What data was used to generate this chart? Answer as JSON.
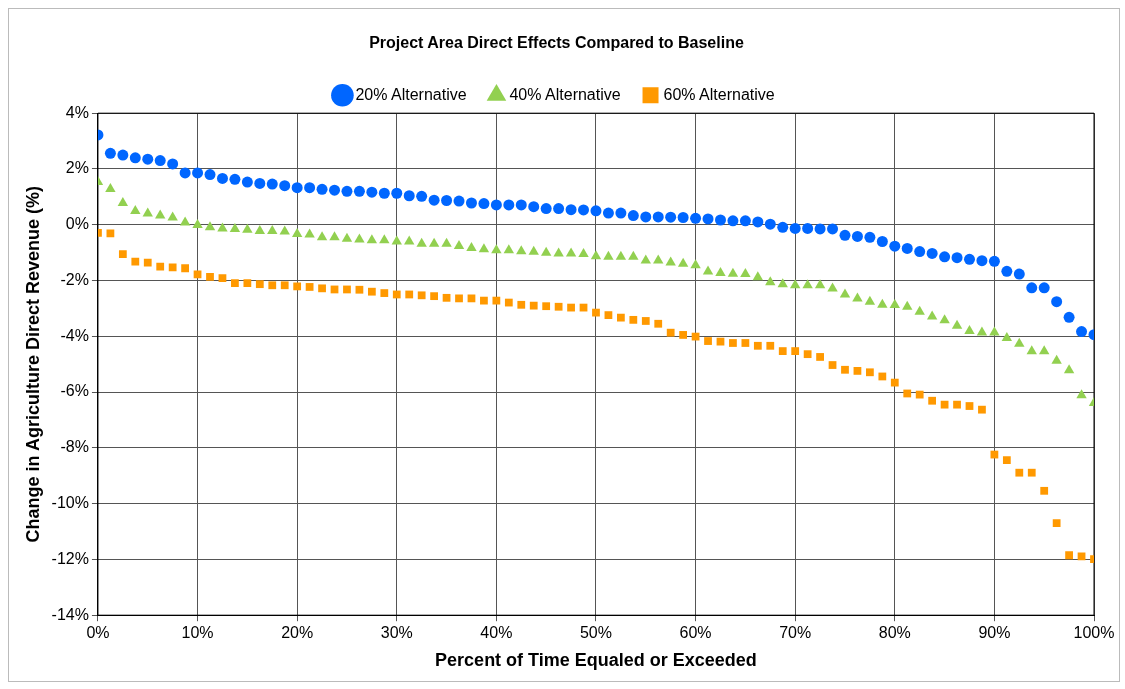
{
  "chart_data": {
    "type": "scatter",
    "title": "Project Area Direct Effects Compared to Baseline",
    "xlabel": "Percent of Time Equaled or Exceeded",
    "ylabel": "Change in Agriculture Direct Revenue (%)",
    "x": [
      0,
      1.25,
      2.5,
      3.75,
      5,
      6.25,
      7.5,
      8.75,
      10,
      11.25,
      12.5,
      13.75,
      15,
      16.25,
      17.5,
      18.75,
      20,
      21.25,
      22.5,
      23.75,
      25,
      26.25,
      27.5,
      28.75,
      30,
      31.25,
      32.5,
      33.75,
      35,
      36.25,
      37.5,
      38.75,
      40,
      41.25,
      42.5,
      43.75,
      45,
      46.25,
      47.5,
      48.75,
      50,
      51.25,
      52.5,
      53.75,
      55,
      56.25,
      57.5,
      58.75,
      60,
      61.25,
      62.5,
      63.75,
      65,
      66.25,
      67.5,
      68.75,
      70,
      71.25,
      72.5,
      73.75,
      75,
      76.25,
      77.5,
      78.75,
      80,
      81.25,
      82.5,
      83.75,
      85,
      86.25,
      87.5,
      88.75,
      90,
      91.25,
      92.5,
      93.75,
      95,
      96.25,
      97.5,
      98.75,
      100
    ],
    "series": [
      {
        "name": "20% Alternative",
        "color": "#0066ff",
        "marker": "circle",
        "values": [
          3.22,
          2.56,
          2.5,
          2.4,
          2.35,
          2.3,
          2.18,
          1.86,
          1.86,
          1.8,
          1.66,
          1.63,
          1.53,
          1.48,
          1.46,
          1.4,
          1.33,
          1.33,
          1.27,
          1.24,
          1.2,
          1.2,
          1.17,
          1.13,
          1.13,
          1.04,
          1.02,
          0.88,
          0.87,
          0.85,
          0.78,
          0.76,
          0.71,
          0.71,
          0.71,
          0.65,
          0.58,
          0.58,
          0.54,
          0.53,
          0.5,
          0.42,
          0.42,
          0.33,
          0.28,
          0.28,
          0.27,
          0.26,
          0.23,
          0.21,
          0.17,
          0.14,
          0.14,
          0.1,
          0.02,
          -0.09,
          -0.13,
          -0.13,
          -0.15,
          -0.15,
          -0.38,
          -0.42,
          -0.45,
          -0.6,
          -0.77,
          -0.85,
          -0.96,
          -1.03,
          -1.15,
          -1.18,
          -1.24,
          -1.29,
          -1.31,
          -1.67,
          -1.77,
          -2.26,
          -2.26,
          -2.76,
          -3.32,
          -3.83,
          -3.94
        ]
      },
      {
        "name": "40% Alternative",
        "color": "#92d050",
        "marker": "triangle",
        "values": [
          1.53,
          1.28,
          0.78,
          0.49,
          0.4,
          0.33,
          0.26,
          0.08,
          -0.01,
          -0.09,
          -0.13,
          -0.15,
          -0.18,
          -0.22,
          -0.22,
          -0.24,
          -0.33,
          -0.35,
          -0.45,
          -0.45,
          -0.5,
          -0.53,
          -0.56,
          -0.56,
          -0.6,
          -0.6,
          -0.68,
          -0.68,
          -0.68,
          -0.76,
          -0.83,
          -0.88,
          -0.91,
          -0.91,
          -0.95,
          -0.97,
          -1.0,
          -1.03,
          -1.03,
          -1.05,
          -1.13,
          -1.15,
          -1.15,
          -1.15,
          -1.28,
          -1.28,
          -1.35,
          -1.4,
          -1.45,
          -1.68,
          -1.73,
          -1.76,
          -1.77,
          -1.88,
          -2.06,
          -2.13,
          -2.17,
          -2.17,
          -2.17,
          -2.29,
          -2.5,
          -2.64,
          -2.76,
          -2.87,
          -2.88,
          -2.94,
          -3.12,
          -3.29,
          -3.42,
          -3.62,
          -3.81,
          -3.86,
          -3.86,
          -4.06,
          -4.27,
          -4.54,
          -4.54,
          -4.88,
          -5.22,
          -6.11,
          -6.39
        ]
      },
      {
        "name": "60% Alternative",
        "color": "#ff9900",
        "marker": "square",
        "values": [
          -0.29,
          -0.31,
          -1.05,
          -1.32,
          -1.36,
          -1.5,
          -1.53,
          -1.56,
          -1.78,
          -1.87,
          -1.91,
          -2.09,
          -2.09,
          -2.13,
          -2.17,
          -2.17,
          -2.21,
          -2.23,
          -2.28,
          -2.32,
          -2.32,
          -2.33,
          -2.4,
          -2.45,
          -2.5,
          -2.5,
          -2.53,
          -2.56,
          -2.62,
          -2.64,
          -2.64,
          -2.72,
          -2.72,
          -2.79,
          -2.87,
          -2.9,
          -2.92,
          -2.94,
          -2.97,
          -2.97,
          -3.15,
          -3.24,
          -3.33,
          -3.41,
          -3.45,
          -3.55,
          -3.87,
          -3.95,
          -4.01,
          -4.17,
          -4.19,
          -4.24,
          -4.24,
          -4.34,
          -4.34,
          -4.53,
          -4.53,
          -4.64,
          -4.74,
          -5.03,
          -5.2,
          -5.24,
          -5.29,
          -5.44,
          -5.66,
          -6.05,
          -6.09,
          -6.31,
          -6.45,
          -6.45,
          -6.5,
          -6.63,
          -8.24,
          -8.44,
          -8.89,
          -8.89,
          -9.54,
          -10.7,
          -11.85,
          -11.89,
          -11.99
        ]
      }
    ],
    "xlim": [
      0,
      100
    ],
    "xticks": [
      {
        "value": 0,
        "label": "0%"
      },
      {
        "value": 10,
        "label": "10%"
      },
      {
        "value": 20,
        "label": "20%"
      },
      {
        "value": 30,
        "label": "30%"
      },
      {
        "value": 40,
        "label": "40%"
      },
      {
        "value": 50,
        "label": "50%"
      },
      {
        "value": 60,
        "label": "60%"
      },
      {
        "value": 70,
        "label": "70%"
      },
      {
        "value": 80,
        "label": "80%"
      },
      {
        "value": 90,
        "label": "90%"
      },
      {
        "value": 100,
        "label": "100%"
      }
    ],
    "ylim": [
      -14,
      4
    ],
    "yticks": [
      {
        "value": -14,
        "label": "-14%"
      },
      {
        "value": -12,
        "label": "-12%"
      },
      {
        "value": -10,
        "label": "-10%"
      },
      {
        "value": -8,
        "label": "-8%"
      },
      {
        "value": -6,
        "label": "-6%"
      },
      {
        "value": -4,
        "label": "-4%"
      },
      {
        "value": -2,
        "label": "-2%"
      },
      {
        "value": 0,
        "label": "0%"
      },
      {
        "value": 2,
        "label": "2%"
      },
      {
        "value": 4,
        "label": "4%"
      }
    ],
    "grid": true,
    "legend": "top"
  }
}
